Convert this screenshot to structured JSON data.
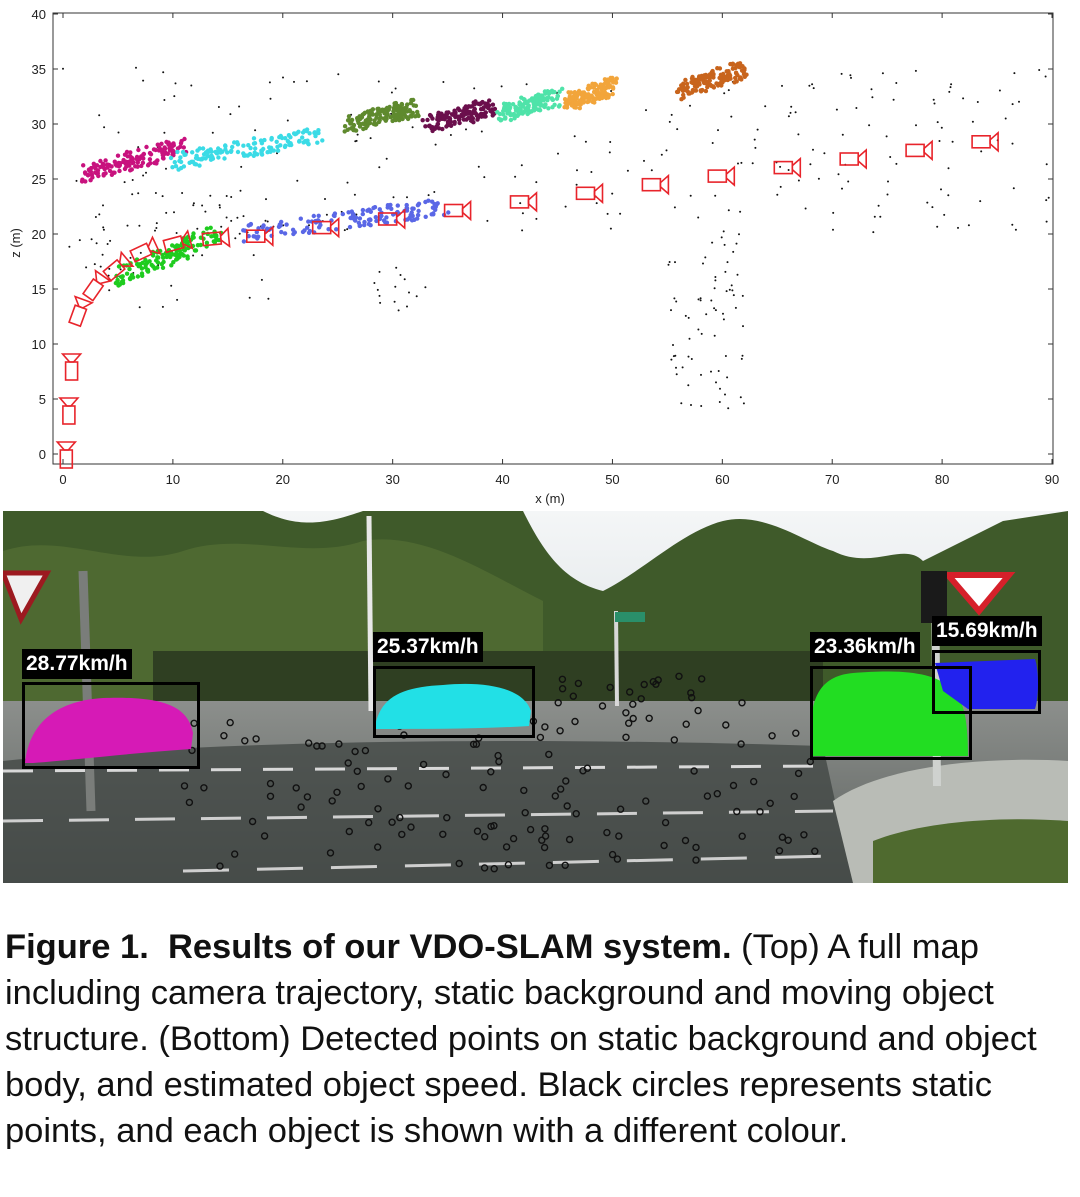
{
  "plot": {
    "xlabel": "x (m)",
    "ylabel": "z (m)",
    "xlim": [
      0,
      90
    ],
    "ylim": [
      -1,
      40
    ],
    "x_ticks": [
      "0",
      "10",
      "20",
      "30",
      "40",
      "50",
      "60",
      "70",
      "80",
      "90"
    ],
    "y_ticks": [
      "0",
      "5",
      "10",
      "15",
      "20",
      "25",
      "30",
      "35",
      "40"
    ],
    "camera_color": "#e8242b",
    "static_point_color": "#111111",
    "objects": [
      {
        "color": "#c8127e",
        "from": [
          2,
          25.5
        ],
        "to": [
          11,
          28
        ]
      },
      {
        "color": "#3bdbe6",
        "from": [
          10,
          26.5
        ],
        "to": [
          23,
          29
        ]
      },
      {
        "color": "#5f8a2e",
        "from": [
          26,
          30
        ],
        "to": [
          32,
          31.5
        ]
      },
      {
        "color": "#6b0f4c",
        "from": [
          33,
          30
        ],
        "to": [
          39,
          31.5
        ]
      },
      {
        "color": "#4fe3a9",
        "from": [
          40,
          31
        ],
        "to": [
          45,
          32.5
        ]
      },
      {
        "color": "#f2a53b",
        "from": [
          46,
          32
        ],
        "to": [
          50,
          33.5
        ]
      },
      {
        "color": "#c8641c",
        "from": [
          56,
          33
        ],
        "to": [
          62,
          35
        ]
      },
      {
        "color": "#1fcc1f",
        "from": [
          5,
          16
        ],
        "to": [
          14,
          20
        ]
      },
      {
        "color": "#5a67e6",
        "from": [
          16,
          20
        ],
        "to": [
          35,
          22.5
        ]
      }
    ]
  },
  "scene": {
    "labels": [
      {
        "text": "28.77km/h"
      },
      {
        "text": "25.37km/h"
      },
      {
        "text": "23.36km/h"
      },
      {
        "text": "15.69km/h"
      }
    ],
    "object_colors": [
      "#d61ab6",
      "#22e0e6",
      "#22dd22",
      "#2222ee"
    ]
  },
  "caption": {
    "label": "Figure 1.",
    "heading": "Results of our VDO-SLAM system.",
    "body": " (Top) A full map including camera trajectory, static background and moving object structure. (Bottom) Detected points on static background and object body, and estimated object speed. Black circles represents static points, and each object is shown with a different colour."
  }
}
